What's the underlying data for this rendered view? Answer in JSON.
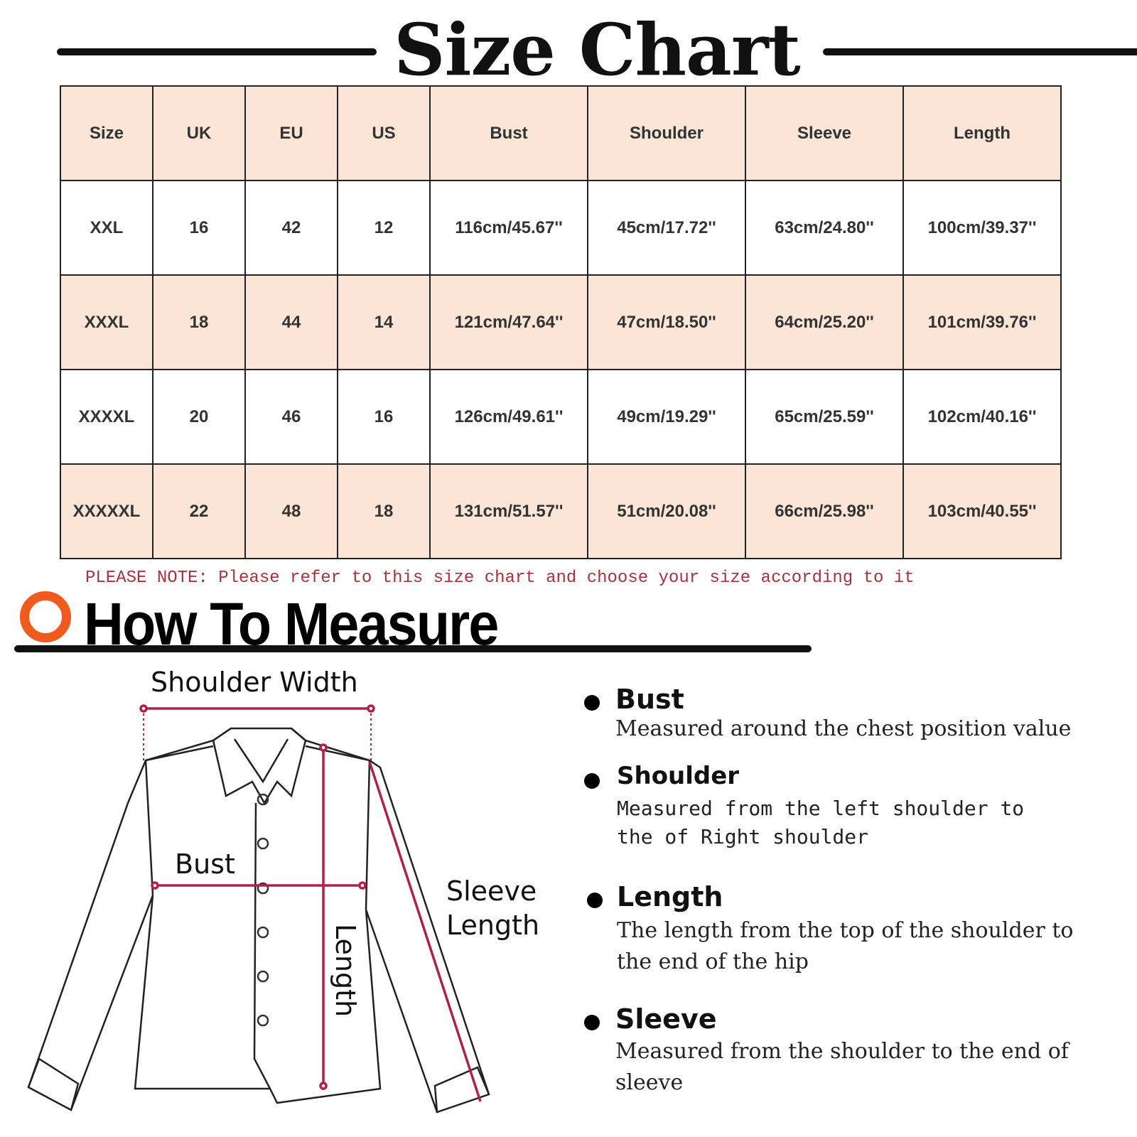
{
  "title": "Size Chart",
  "table": {
    "headers": [
      "Size",
      "UK",
      "EU",
      "US",
      "Bust",
      "Shoulder",
      "Sleeve",
      "Length"
    ],
    "rows": [
      [
        "XXL",
        "16",
        "42",
        "12",
        "116cm/45.67''",
        "45cm/17.72''",
        "63cm/24.80''",
        "100cm/39.37''"
      ],
      [
        "XXXL",
        "18",
        "44",
        "14",
        "121cm/47.64''",
        "47cm/18.50''",
        "64cm/25.20''",
        "101cm/39.76''"
      ],
      [
        "XXXXL",
        "20",
        "46",
        "16",
        "126cm/49.61''",
        "49cm/19.29''",
        "65cm/25.59''",
        "102cm/40.16''"
      ],
      [
        "XXXXXL",
        "22",
        "48",
        "18",
        "131cm/51.57''",
        "51cm/20.08''",
        "66cm/25.98''",
        "103cm/40.55''"
      ]
    ]
  },
  "note": "PLEASE NOTE: Please refer to this size chart and choose your size according to it",
  "how_to_measure": "How To Measure",
  "diagram": {
    "shoulder_width": "Shoulder Width",
    "bust": "Bust",
    "length": "Length",
    "sleeve_line1": "Sleeve",
    "sleeve_line2": "Length"
  },
  "guide": [
    {
      "title": "Bust",
      "desc": "Measured around the chest position value"
    },
    {
      "title": "Shoulder",
      "desc": "Measured from the left shoulder to the of Right shoulder"
    },
    {
      "title": "Length",
      "desc": "The length from the top of the shoulder to the end of the hip"
    },
    {
      "title": "Sleeve",
      "desc": "Measured from the shoulder to the end of sleeve"
    }
  ],
  "colors": {
    "header_fill": "#fbe5d6",
    "note": "#a8323e",
    "accent_ring": "#f05a1e",
    "measure_line": "#b0204a"
  }
}
